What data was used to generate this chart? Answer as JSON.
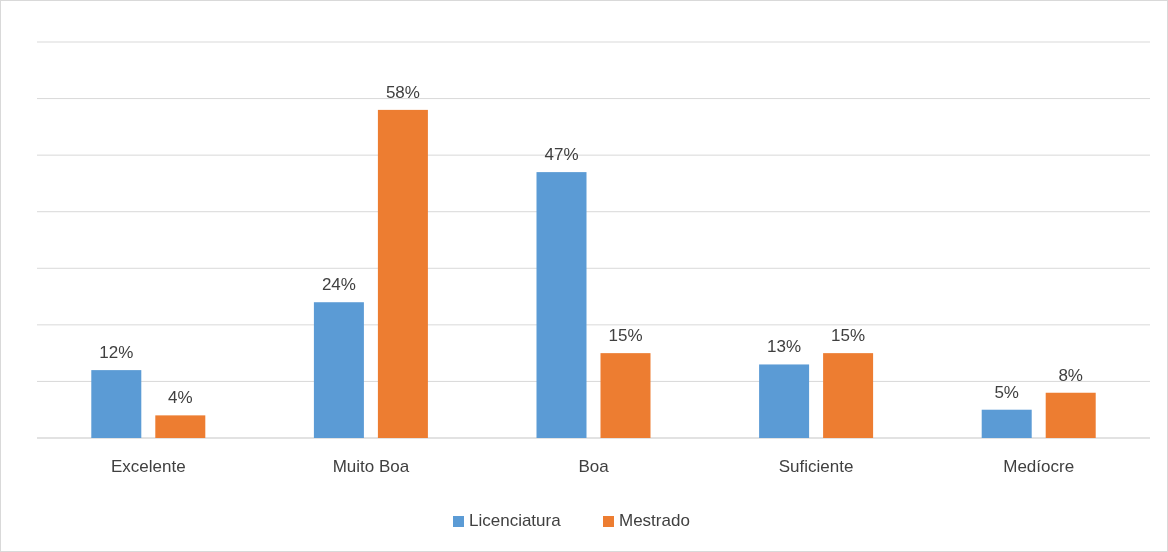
{
  "chart_data": {
    "type": "bar",
    "categories": [
      "Excelente",
      "Muito Boa",
      "Boa",
      "Suficiente",
      "Medíocre"
    ],
    "series": [
      {
        "name": "Licenciatura",
        "color": "#5b9bd5",
        "values": [
          12,
          24,
          47,
          13,
          5
        ],
        "value_labels": [
          "12%",
          "24%",
          "47%",
          "13%",
          "5%"
        ]
      },
      {
        "name": "Mestrado",
        "color": "#ed7d31",
        "values": [
          4,
          58,
          15,
          15,
          8
        ],
        "value_labels": [
          "4%",
          "58%",
          "15%",
          "15%",
          "8%"
        ]
      }
    ],
    "tick_labels": "x",
    "grid": "y",
    "legend": "bottom"
  }
}
